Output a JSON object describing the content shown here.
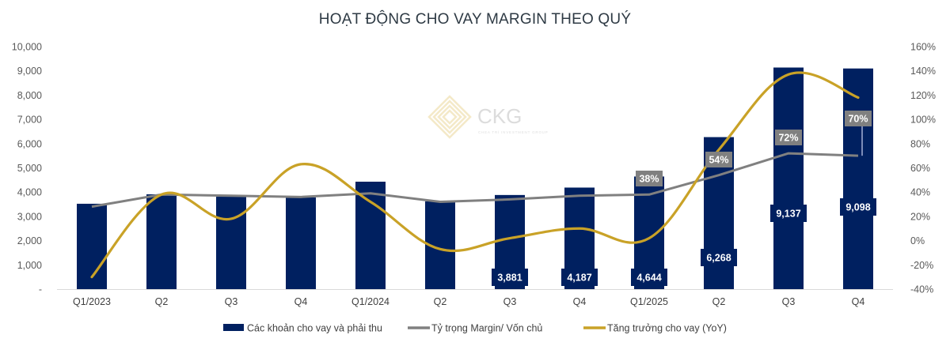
{
  "chart_data": {
    "type": "bar+line",
    "title": "HOẠT ĐỘNG CHO VAY MARGIN THEO QUÝ",
    "categories": [
      "Q1/2023",
      "Q2",
      "Q3",
      "Q4",
      "Q1/2024",
      "Q2",
      "Q3",
      "Q4",
      "Q1/2025",
      "Q2",
      "Q3",
      "Q4"
    ],
    "series": [
      {
        "name": "Các khoản cho vay và phải thu",
        "type": "bar",
        "axis": "left",
        "color": "#002060",
        "values": [
          3520,
          3910,
          3810,
          3780,
          4430,
          3620,
          3881,
          4187,
          4644,
          6268,
          9137,
          9098
        ],
        "data_labels": [
          null,
          null,
          null,
          null,
          null,
          null,
          "3,881",
          "4,187",
          "4,644",
          "6,268",
          "9,137",
          "9,098"
        ]
      },
      {
        "name": "Tỷ trọng Margin/ Vốn chủ",
        "type": "line",
        "axis": "right",
        "color": "#808080",
        "values": [
          28,
          38,
          37,
          36,
          39,
          32,
          34,
          37,
          38,
          54,
          72,
          70
        ],
        "data_labels": [
          null,
          null,
          null,
          null,
          null,
          null,
          null,
          null,
          "38%",
          "54%",
          "72%",
          "70%"
        ]
      },
      {
        "name": "Tăng trưởng cho vay (YoY)",
        "type": "line-smooth",
        "axis": "right",
        "color": "#C9A227",
        "values": [
          -30,
          38,
          18,
          63,
          32,
          -7,
          2,
          10,
          2,
          75,
          137,
          118
        ]
      }
    ],
    "left_axis": {
      "ticks": [
        "10,000",
        "9,000",
        "8,000",
        "7,000",
        "6,000",
        "5,000",
        "4,000",
        "3,000",
        "2,000",
        "1,000",
        "-"
      ],
      "range": [
        0,
        10000
      ]
    },
    "right_axis": {
      "ticks": [
        "160%",
        "140%",
        "120%",
        "100%",
        "80%",
        "60%",
        "40%",
        "20%",
        "0%",
        "-20%",
        "-40%"
      ],
      "range": [
        -40,
        160
      ]
    },
    "legend_position": "bottom",
    "grid": false
  },
  "watermark": {
    "brand": "CKG",
    "tagline": "CHEA TRÍ INVESTMENT GROUP"
  },
  "legend": {
    "items": [
      {
        "label": "Các khoản cho vay và phải thu",
        "kind": "bar",
        "color": "#002060"
      },
      {
        "label": "Tỷ trọng Margin/ Vốn chủ",
        "kind": "line",
        "color": "#808080"
      },
      {
        "label": "Tăng trưởng cho vay (YoY)",
        "kind": "line",
        "color": "#C9A227"
      }
    ]
  }
}
